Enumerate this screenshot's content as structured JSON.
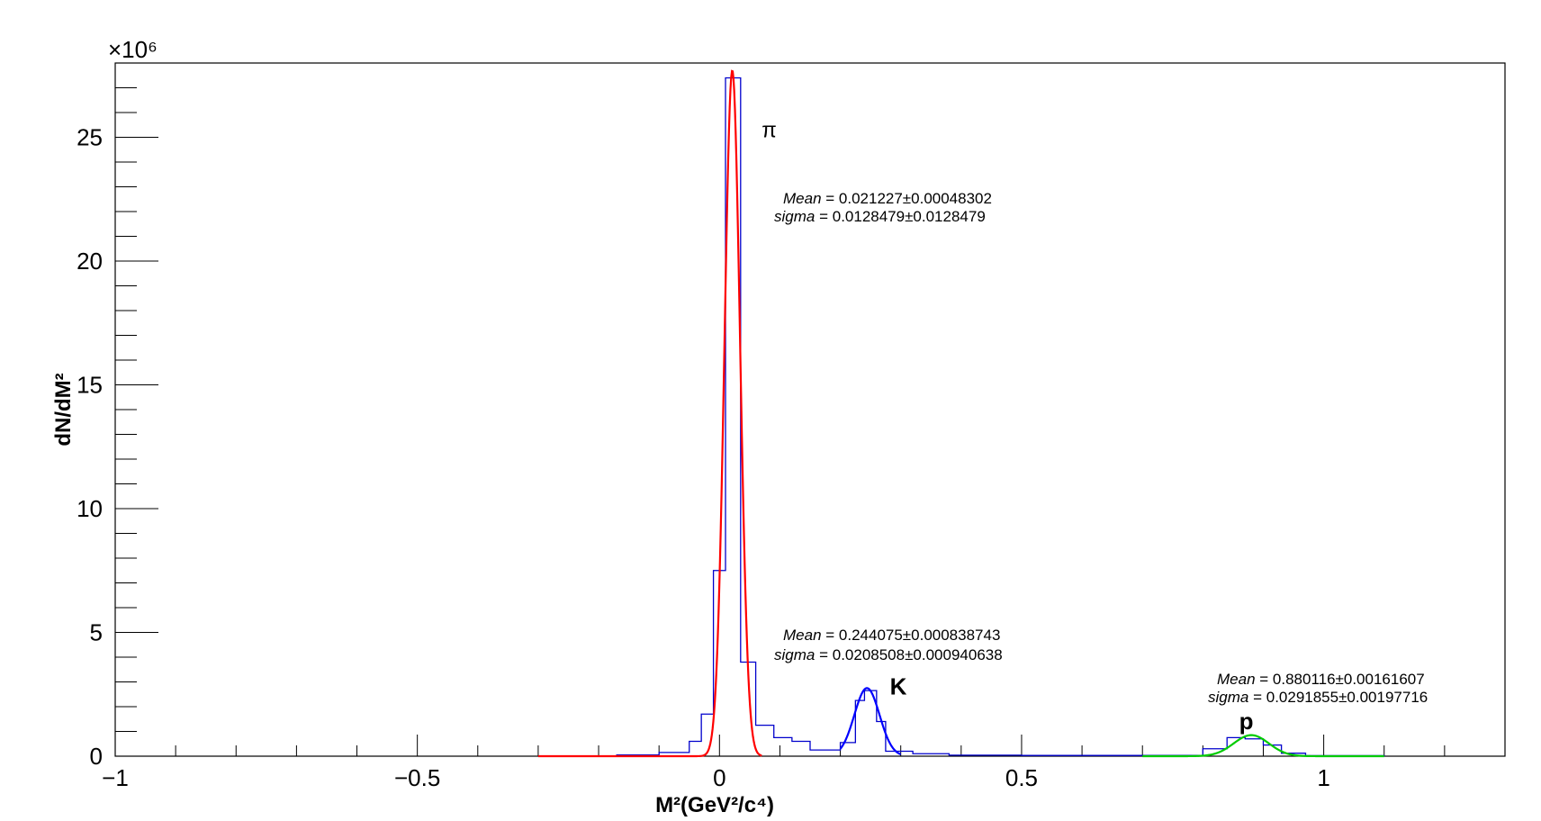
{
  "chart_data": {
    "type": "line",
    "xlabel": "M²(GeV²/c⁴)",
    "ylabel": "dN/dM²",
    "y_multiplier": "×10⁶",
    "xlim": [
      -1,
      1.3
    ],
    "ylim": [
      0,
      28
    ],
    "x_ticks": [
      -1,
      -0.5,
      0,
      0.5,
      1
    ],
    "x_tick_labels": [
      "−1",
      "−0.5",
      "0",
      "0.5",
      "1"
    ],
    "y_ticks": [
      0,
      5,
      10,
      15,
      20,
      25
    ],
    "y_tick_labels": [
      "0",
      "5",
      "10",
      "15",
      "20",
      "25"
    ],
    "grid": false,
    "histogram": {
      "color": "#0000cc",
      "bins": [
        {
          "x0": -0.17,
          "x1": -0.1,
          "y": 0.05
        },
        {
          "x0": -0.1,
          "x1": -0.05,
          "y": 0.15
        },
        {
          "x0": -0.05,
          "x1": -0.03,
          "y": 0.6
        },
        {
          "x0": -0.03,
          "x1": -0.01,
          "y": 1.7
        },
        {
          "x0": -0.01,
          "x1": 0.01,
          "y": 7.5
        },
        {
          "x0": 0.01,
          "x1": 0.035,
          "y": 27.4
        },
        {
          "x0": 0.035,
          "x1": 0.06,
          "y": 3.8
        },
        {
          "x0": 0.06,
          "x1": 0.09,
          "y": 1.25
        },
        {
          "x0": 0.09,
          "x1": 0.12,
          "y": 0.75
        },
        {
          "x0": 0.12,
          "x1": 0.15,
          "y": 0.6
        },
        {
          "x0": 0.15,
          "x1": 0.2,
          "y": 0.25
        },
        {
          "x0": 0.2,
          "x1": 0.225,
          "y": 0.55
        },
        {
          "x0": 0.225,
          "x1": 0.24,
          "y": 2.25
        },
        {
          "x0": 0.24,
          "x1": 0.26,
          "y": 2.65
        },
        {
          "x0": 0.26,
          "x1": 0.275,
          "y": 1.4
        },
        {
          "x0": 0.275,
          "x1": 0.32,
          "y": 0.2
        },
        {
          "x0": 0.32,
          "x1": 0.38,
          "y": 0.1
        },
        {
          "x0": 0.38,
          "x1": 0.5,
          "y": 0.04
        },
        {
          "x0": 0.5,
          "x1": 0.8,
          "y": 0.03
        },
        {
          "x0": 0.8,
          "x1": 0.84,
          "y": 0.3
        },
        {
          "x0": 0.84,
          "x1": 0.87,
          "y": 0.75
        },
        {
          "x0": 0.87,
          "x1": 0.9,
          "y": 0.7
        },
        {
          "x0": 0.9,
          "x1": 0.93,
          "y": 0.45
        },
        {
          "x0": 0.93,
          "x1": 0.97,
          "y": 0.12
        },
        {
          "x0": 0.97,
          "x1": 1.1,
          "y": 0.02
        }
      ]
    },
    "series": [
      {
        "name": "π",
        "color": "#ff0000",
        "function": "gaus",
        "amplitude": 27.7,
        "mean": 0.021227,
        "sigma": 0.0128479,
        "range": [
          -0.3,
          0.07
        ]
      },
      {
        "name": "K",
        "color": "#0000ff",
        "function": "gaus",
        "amplitude": 2.75,
        "mean": 0.244075,
        "sigma": 0.0208508,
        "range": [
          0.2,
          0.3
        ]
      },
      {
        "name": "p",
        "color": "#00cc00",
        "function": "gaus",
        "amplitude": 0.85,
        "mean": 0.880116,
        "sigma": 0.0291855,
        "range": [
          0.7,
          1.1
        ]
      }
    ],
    "annotations": [
      {
        "label": "π",
        "x": 0.07,
        "y": 25.0
      },
      {
        "label": "K",
        "x": 0.282,
        "y": 2.5
      },
      {
        "label": "p",
        "x": 0.86,
        "y": 1.1
      }
    ],
    "fit_results": [
      {
        "peak": "π",
        "mean_label": "Mean",
        "mean_value": "= 0.021227±0.00048302",
        "sigma_label": "sigma",
        "sigma_value": "= 0.0128479±0.0128479"
      },
      {
        "peak": "K",
        "mean_label": "Mean",
        "mean_value": "= 0.244075±0.000838743",
        "sigma_label": "sigma",
        "sigma_value": "= 0.0208508±0.000940638"
      },
      {
        "peak": "p",
        "mean_label": "Mean",
        "mean_value": "= 0.880116±0.00161607",
        "sigma_label": "sigma",
        "sigma_value": "= 0.0291855±0.00197716"
      }
    ]
  }
}
